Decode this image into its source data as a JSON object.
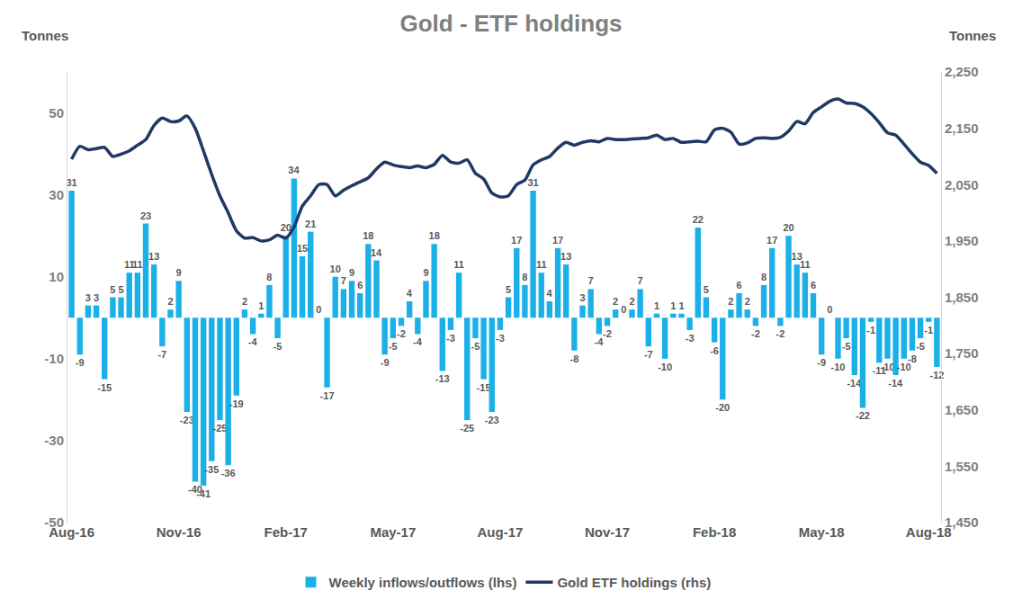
{
  "chart_data": {
    "type": "bar",
    "title": "Gold - ETF holdings",
    "y_label": "Tonnes",
    "y2_label": "Tonnes",
    "categories": [
      "Aug-16",
      null,
      null,
      null,
      null,
      null,
      null,
      null,
      null,
      null,
      null,
      null,
      null,
      "Nov-16",
      null,
      null,
      null,
      null,
      null,
      null,
      null,
      null,
      null,
      null,
      null,
      null,
      "Feb-17",
      null,
      null,
      null,
      null,
      null,
      null,
      null,
      null,
      null,
      null,
      null,
      null,
      "May-17",
      null,
      null,
      null,
      null,
      null,
      null,
      null,
      null,
      null,
      null,
      null,
      null,
      "Aug-17",
      null,
      null,
      null,
      null,
      null,
      null,
      null,
      null,
      null,
      null,
      null,
      null,
      "Nov-17",
      null,
      null,
      null,
      null,
      null,
      null,
      null,
      null,
      null,
      null,
      null,
      null,
      "Feb-18",
      null,
      null,
      null,
      null,
      null,
      null,
      null,
      null,
      null,
      null,
      null,
      null,
      "May-18",
      null,
      null,
      null,
      null,
      null,
      null,
      null,
      null,
      null,
      null,
      null,
      null,
      "Aug-18",
      null
    ],
    "series": [
      {
        "name": "Weekly inflows/outflows (lhs)",
        "type": "bar",
        "color": "#1CB0E8",
        "values": [
          31,
          -9,
          3,
          3,
          -15,
          5,
          5,
          11,
          11,
          23,
          13,
          -7,
          2,
          9,
          -23,
          -40,
          -41,
          -35,
          -25,
          -36,
          -19,
          2,
          -4,
          1,
          8,
          -5,
          20,
          34,
          15,
          21,
          0,
          -17,
          10,
          7,
          9,
          6,
          18,
          14,
          -9,
          -5,
          -2,
          4,
          -4,
          9,
          18,
          -13,
          -3,
          11,
          -25,
          -5,
          -15,
          -23,
          -3,
          5,
          17,
          8,
          31,
          11,
          4,
          17,
          13,
          -8,
          3,
          7,
          -4,
          -2,
          2,
          0,
          2,
          7,
          -7,
          1,
          -10,
          1,
          1,
          -3,
          22,
          5,
          -6,
          -20,
          2,
          6,
          2,
          -2,
          8,
          17,
          -2,
          20,
          13,
          11,
          6,
          -9,
          0,
          -10,
          -5,
          -14,
          -22,
          -1,
          -11,
          -10,
          -14,
          -10,
          -8,
          -5,
          -1,
          -12
        ]
      },
      {
        "name": "Gold ETF holdings (rhs)",
        "type": "line",
        "color": "#1F3864",
        "axis": "y2",
        "values": [
          2095,
          2118,
          2112,
          2114,
          2116,
          2100,
          2104,
          2110,
          2120,
          2130,
          2155,
          2168,
          2162,
          2163,
          2172,
          2150,
          2110,
          2068,
          2030,
          2000,
          1968,
          1955,
          1956,
          1950,
          1952,
          1960,
          1955,
          1975,
          2012,
          2030,
          2050,
          2050,
          2030,
          2040,
          2048,
          2055,
          2062,
          2078,
          2090,
          2085,
          2082,
          2080,
          2083,
          2080,
          2086,
          2102,
          2090,
          2088,
          2094,
          2070,
          2060,
          2035,
          2028,
          2030,
          2050,
          2058,
          2085,
          2094,
          2100,
          2115,
          2125,
          2120,
          2125,
          2128,
          2126,
          2132,
          2130,
          2130,
          2131,
          2132,
          2133,
          2138,
          2130,
          2132,
          2125,
          2126,
          2127,
          2126,
          2147,
          2150,
          2143,
          2122,
          2124,
          2132,
          2133,
          2132,
          2134,
          2145,
          2162,
          2158,
          2178,
          2188,
          2198,
          2202,
          2195,
          2194,
          2188,
          2176,
          2160,
          2142,
          2138,
          2122,
          2105,
          2090,
          2084,
          2070
        ]
      }
    ],
    "ylim": [
      -50,
      60
    ],
    "yticks": [
      -50,
      -30,
      -10,
      10,
      30,
      50
    ],
    "y2lim": [
      1450,
      2250
    ],
    "y2ticks": [
      {
        "value": 1450,
        "label": "1,450"
      },
      {
        "value": 1550,
        "label": "1,550"
      },
      {
        "value": 1650,
        "label": "1,650"
      },
      {
        "value": 1750,
        "label": "1,750"
      },
      {
        "value": 1850,
        "label": "1,850"
      },
      {
        "value": 1950,
        "label": "1,950"
      },
      {
        "value": 2050,
        "label": "2,050"
      },
      {
        "value": 2150,
        "label": "2,150"
      },
      {
        "value": 2250,
        "label": "2,250"
      }
    ],
    "grid": false,
    "legend": "bottom",
    "data_labels": true
  }
}
